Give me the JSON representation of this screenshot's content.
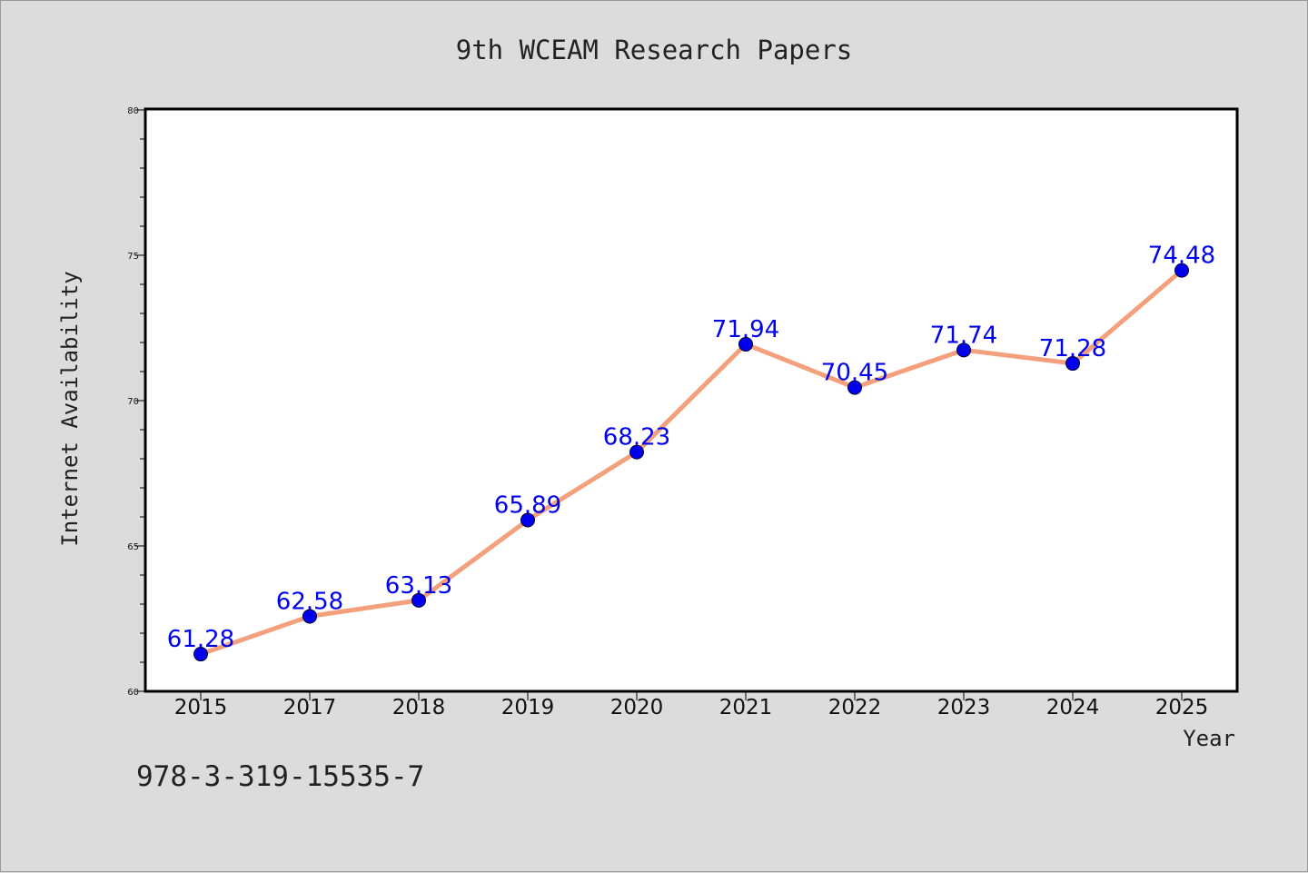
{
  "chart_data": {
    "type": "line",
    "title": "9th WCEAM Research Papers",
    "xlabel": "Year",
    "ylabel": "Internet Availability",
    "categories": [
      "2015",
      "2017",
      "2018",
      "2019",
      "2020",
      "2021",
      "2022",
      "2023",
      "2024",
      "2025"
    ],
    "series": [
      {
        "values": [
          61.28,
          62.58,
          63.13,
          65.89,
          68.23,
          71.94,
          70.45,
          71.74,
          71.28,
          74.48
        ],
        "line_color": "#f4a07c",
        "marker_color": "#0000ee"
      }
    ],
    "data_labels": [
      "61.28",
      "62.58",
      "63.13",
      "65.89",
      "68.23",
      "71.94",
      "70.45",
      "71.74",
      "71.28",
      "74.48"
    ],
    "ylim": [
      60,
      80
    ],
    "yticks": [
      60,
      65,
      70,
      75,
      80
    ],
    "ytick_labels": [
      "60",
      "65",
      "70",
      "75",
      "80"
    ],
    "grid": false,
    "legend": "none"
  },
  "annotation": "978-3-319-15535-7"
}
